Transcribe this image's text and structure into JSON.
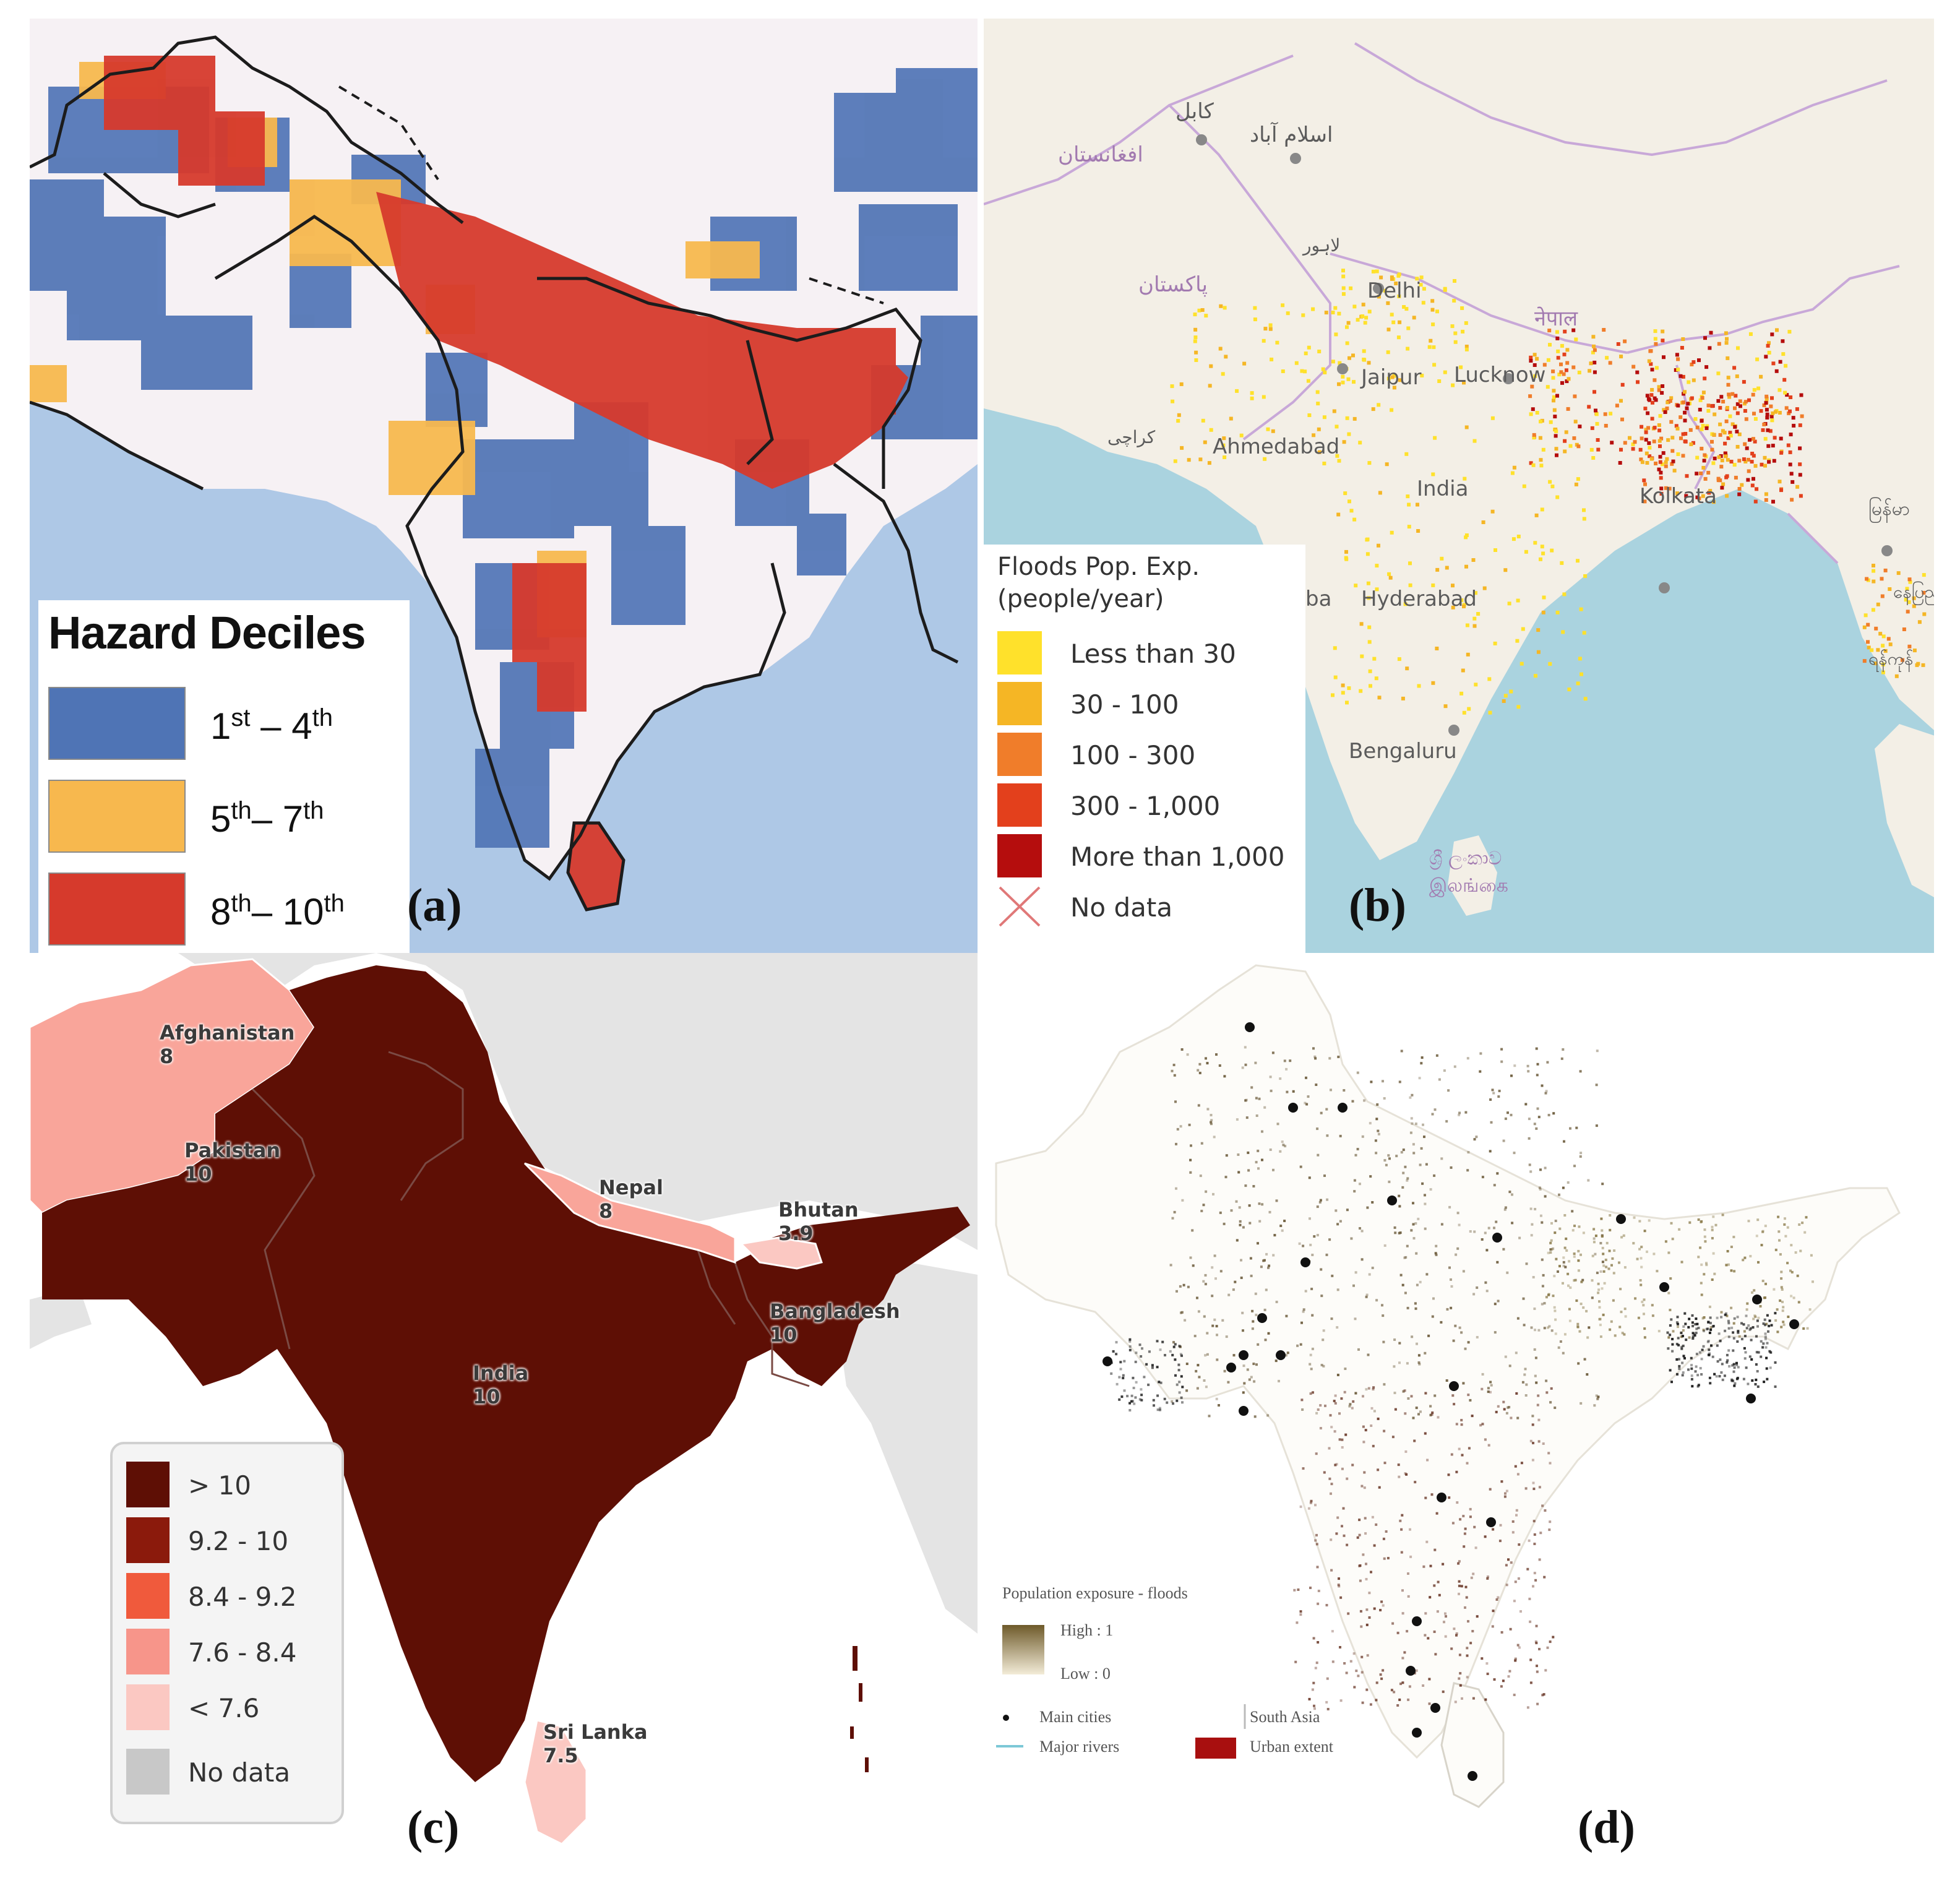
{
  "panels": {
    "a": {
      "letter": "(a)",
      "legend": {
        "title": "Hazard Deciles",
        "items": [
          {
            "from_num": "1",
            "from_sup": "st",
            "sep": " – ",
            "to_num": "4",
            "to_sup": "th",
            "color": "#4f74b5"
          },
          {
            "from_num": "5",
            "from_sup": "th",
            "sep": "– ",
            "to_num": "7",
            "to_sup": "th",
            "color": "#f7b84e"
          },
          {
            "from_num": "8",
            "from_sup": "th",
            "sep": "– ",
            "to_num": "10",
            "to_sup": "th",
            "color": "#d63a2c"
          }
        ]
      }
    },
    "b": {
      "letter": "(b)",
      "legend": {
        "title_line1": "Floods Pop. Exp.",
        "title_line2": "(people/year)",
        "items": [
          {
            "label": "Less than 30",
            "color": "#ffe12b"
          },
          {
            "label": "30 - 100",
            "color": "#f5b625"
          },
          {
            "label": "100 - 300",
            "color": "#f07d2a"
          },
          {
            "label": "300 - 1,000",
            "color": "#e3401c"
          },
          {
            "label": "More than 1,000",
            "color": "#b50d0d"
          },
          {
            "label": "No data",
            "symbol": "cross-icon",
            "color": "#e07878"
          }
        ]
      },
      "places": {
        "kabul": "كابل",
        "islamabad": "اسلام آباد",
        "afghanistan": "افغانستان",
        "lahore": "لاہور",
        "pakistan": "پاکستان",
        "delhi": "Delhi",
        "nepal": "नेपाल",
        "jaipur": "Jaipur",
        "lucknow": "Lucknow",
        "karachi": "کراچی",
        "ahmedabad": "Ahmedabad",
        "india": "India",
        "kolkata": "Kolkata",
        "myanmar": "မြန်မာ",
        "mumbai_partial": "ba",
        "hyderabad": "Hyderabad",
        "yangon": "ရန်ကုန်",
        "naypyidaw": "နေပြည်တော်",
        "bengaluru": "Bengaluru",
        "srilanka_si": "ශ්‍රී ලංකාව",
        "srilanka_ta": "இலங்கை"
      }
    },
    "c": {
      "letter": "(c)",
      "countries": [
        {
          "name": "Afghanistan",
          "value": "8"
        },
        {
          "name": "Pakistan",
          "value": "10"
        },
        {
          "name": "Nepal",
          "value": "8"
        },
        {
          "name": "Bhutan",
          "value": "3.9"
        },
        {
          "name": "Bangladesh",
          "value": "10"
        },
        {
          "name": "India",
          "value": "10"
        },
        {
          "name": "Sri Lanka",
          "value": "7.5"
        }
      ],
      "legend": {
        "items": [
          {
            "label": "> 10",
            "color": "#5e0f05"
          },
          {
            "label": "9.2 - 10",
            "color": "#8b1a0c"
          },
          {
            "label": "8.4 - 9.2",
            "color": "#f05a3c"
          },
          {
            "label": "7.6 - 8.4",
            "color": "#f7958a"
          },
          {
            "label": "< 7.6",
            "color": "#fbc8c2"
          },
          {
            "label": "No data",
            "color": "#c8c8c8"
          }
        ]
      },
      "colors": {
        "india": "#5e0f05",
        "afghanistan": "#f9a59a",
        "nepal": "#f9a59a",
        "bhutan": "#fbc8c2",
        "srilanka": "#fbc8c2",
        "sea": "#ffffff",
        "land_other": "#e6e6e6"
      }
    },
    "d": {
      "letter": "(d)",
      "legend": {
        "title": "Population exposure - floods",
        "high": "High : 1",
        "low": "Low : 0",
        "main_cities": "Main cities",
        "major_rivers": "Major rivers",
        "south_asia": "South Asia",
        "urban_extent": "Urban extent"
      }
    }
  }
}
